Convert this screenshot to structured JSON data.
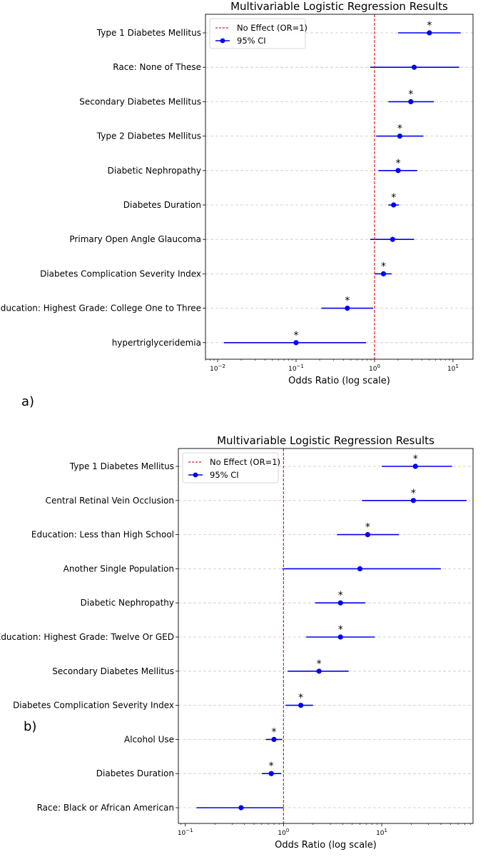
{
  "chart_data": [
    {
      "type": "forest",
      "panel": "a)",
      "title": "Multivariable Logistic Regression Results",
      "xlabel": "Odds Ratio (log scale)",
      "xscale": "log",
      "xlim": [
        0.007,
        18
      ],
      "ticks": [
        {
          "base": "10",
          "exp": "−2",
          "value": 0.01
        },
        {
          "base": "10",
          "exp": "−1",
          "value": 0.1
        },
        {
          "base": "10",
          "exp": "0",
          "value": 1
        },
        {
          "base": "10",
          "exp": "1",
          "value": 10
        }
      ],
      "reference_line": 1,
      "legend": {
        "ref_label": "No Effect (OR=1)",
        "ci_label": "95% CI",
        "location": "top-left"
      },
      "rows": [
        {
          "label": "Type 1 Diabetes Mellitus",
          "or": 5.0,
          "lo": 2.0,
          "hi": 12.5,
          "sig": "*"
        },
        {
          "label": "Race: None of These",
          "or": 3.2,
          "lo": 0.88,
          "hi": 12.0,
          "sig": ""
        },
        {
          "label": "Secondary Diabetes Mellitus",
          "or": 2.9,
          "lo": 1.5,
          "hi": 5.7,
          "sig": "*"
        },
        {
          "label": "Type 2 Diabetes Mellitus",
          "or": 2.1,
          "lo": 1.05,
          "hi": 4.2,
          "sig": "*"
        },
        {
          "label": "Diabetic Nephropathy",
          "or": 2.0,
          "lo": 1.12,
          "hi": 3.5,
          "sig": "*"
        },
        {
          "label": "Diabetes Duration",
          "or": 1.75,
          "lo": 1.5,
          "hi": 2.05,
          "sig": "*"
        },
        {
          "label": "Primary Open Angle Glaucoma",
          "or": 1.7,
          "lo": 0.88,
          "hi": 3.2,
          "sig": ""
        },
        {
          "label": "Diabetes Complication Severity Index",
          "or": 1.3,
          "lo": 1.0,
          "hi": 1.65,
          "sig": "*"
        },
        {
          "label": "Education: Highest Grade: College One to Three",
          "or": 0.45,
          "lo": 0.21,
          "hi": 0.96,
          "sig": "*"
        },
        {
          "label": "hypertriglyceridemia",
          "or": 0.1,
          "lo": 0.012,
          "hi": 0.78,
          "sig": "*"
        }
      ]
    },
    {
      "type": "forest",
      "panel": "b)",
      "title": "Multivariable Logistic Regression Results",
      "xlabel": "Odds Ratio (log scale)",
      "xscale": "log",
      "xlim": [
        0.085,
        85
      ],
      "ticks": [
        {
          "base": "10",
          "exp": "−1",
          "value": 0.1
        },
        {
          "base": "10",
          "exp": "0",
          "value": 1
        },
        {
          "base": "10",
          "exp": "1",
          "value": 10
        }
      ],
      "reference_line": 1,
      "legend": {
        "ref_label": "No Effect (OR=1)",
        "ci_label": "95% CI",
        "location": "top-left"
      },
      "rows": [
        {
          "label": "Type 1 Diabetes Mellitus",
          "or": 22,
          "lo": 10,
          "hi": 52,
          "sig": "*"
        },
        {
          "label": "Central Retinal Vein Occlusion",
          "or": 21,
          "lo": 6.3,
          "hi": 73,
          "sig": "*"
        },
        {
          "label": "Education: Less than High School",
          "or": 7.2,
          "lo": 3.5,
          "hi": 15,
          "sig": "*"
        },
        {
          "label": "Another Single Population",
          "or": 6.0,
          "lo": 0.97,
          "hi": 40,
          "sig": ""
        },
        {
          "label": "Diabetic Nephropathy",
          "or": 3.8,
          "lo": 2.1,
          "hi": 6.8,
          "sig": "*"
        },
        {
          "label": "Education: Highest Grade: Twelve Or GED",
          "or": 3.8,
          "lo": 1.7,
          "hi": 8.5,
          "sig": "*"
        },
        {
          "label": "Secondary Diabetes Mellitus",
          "or": 2.3,
          "lo": 1.1,
          "hi": 4.6,
          "sig": "*"
        },
        {
          "label": "Diabetes Complication Severity Index",
          "or": 1.5,
          "lo": 1.05,
          "hi": 2.0,
          "sig": "*"
        },
        {
          "label": "Alcohol Use",
          "or": 0.8,
          "lo": 0.66,
          "hi": 0.97,
          "sig": "*"
        },
        {
          "label": "Diabetes Duration",
          "or": 0.75,
          "lo": 0.6,
          "hi": 0.95,
          "sig": "*"
        },
        {
          "label": "Race: Black or African American",
          "or": 0.37,
          "lo": 0.13,
          "hi": 1.0,
          "sig": ""
        }
      ]
    }
  ]
}
